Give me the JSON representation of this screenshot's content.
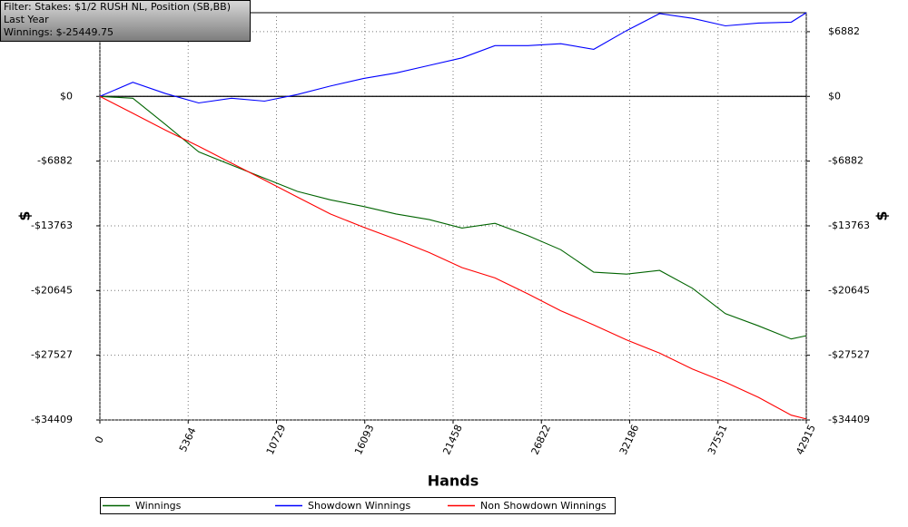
{
  "chart_data": {
    "type": "line",
    "annotations": [
      "Filter: Stakes: $1/2 RUSH NL, Position (SB,BB)",
      "Last Year",
      "Winnings: $-25449.75"
    ],
    "x_label": "Hands",
    "y_label": "$",
    "x": [
      0,
      2000,
      4000,
      6000,
      8000,
      10000,
      12000,
      14000,
      16000,
      18000,
      20000,
      22000,
      24000,
      26000,
      28000,
      30000,
      32000,
      34000,
      36000,
      38000,
      40000,
      42000,
      42915
    ],
    "series": [
      {
        "name": "Winnings",
        "color": "#006400",
        "values": [
          0,
          -200,
          -3000,
          -5900,
          -7300,
          -8700,
          -10100,
          -11000,
          -11700,
          -12500,
          -13100,
          -14000,
          -13500,
          -14800,
          -16300,
          -18700,
          -18900,
          -18500,
          -20400,
          -23100,
          -24400,
          -25800,
          -25449.75
        ]
      },
      {
        "name": "Showdown Winnings",
        "color": "#0000ff",
        "values": [
          0,
          1500,
          300,
          -700,
          -200,
          -500,
          200,
          1100,
          1900,
          2500,
          3300,
          4100,
          5400,
          5400,
          5600,
          5000,
          7000,
          8800,
          8300,
          7500,
          7800,
          7900,
          8900
        ]
      },
      {
        "name": "Non Showdown Winnings",
        "color": "#ff0000",
        "values": [
          0,
          -1800,
          -3600,
          -5300,
          -7100,
          -8900,
          -10700,
          -12500,
          -13900,
          -15200,
          -16600,
          -18200,
          -19300,
          -21000,
          -22800,
          -24300,
          -25900,
          -27300,
          -29000,
          -30400,
          -32000,
          -33900,
          -34300
        ]
      }
    ],
    "xlim": [
      0,
      42915
    ],
    "xticks": [
      0,
      5364,
      10729,
      16093,
      21458,
      26822,
      32186,
      37551,
      42915
    ],
    "ylim": [
      -34409,
      8900
    ],
    "yticks": [
      {
        "value": 6882,
        "label": "$6882"
      },
      {
        "value": 0,
        "label": "$0"
      },
      {
        "value": -6882,
        "label": "-$6882"
      },
      {
        "value": -13763,
        "label": "-$13763"
      },
      {
        "value": -20645,
        "label": "-$20645"
      },
      {
        "value": -27527,
        "label": "-$27527"
      },
      {
        "value": -34409,
        "label": "-$34409"
      }
    ],
    "grid": true,
    "zero_line": true,
    "legend": "bottom"
  }
}
